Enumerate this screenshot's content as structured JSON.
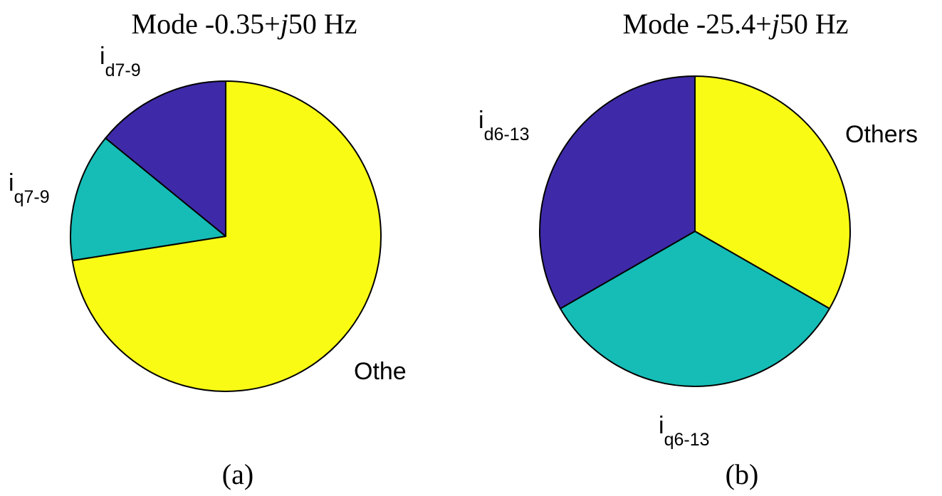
{
  "chart_data": [
    {
      "type": "pie",
      "title": {
        "prefix": "Mode -0.35+",
        "italic": "j",
        "suffix": "50 Hz"
      },
      "caption": "(a)",
      "slices": [
        {
          "label": "Othe",
          "main": "Othe",
          "sub": "",
          "value": 72.5,
          "color": "#F9FB15"
        },
        {
          "label": "iq7-9",
          "main": "i",
          "sub": "q7-9",
          "value": 13.4,
          "color": "#15BDB6"
        },
        {
          "label": "id7-9",
          "main": "i",
          "sub": "d7-9",
          "value": 14.1,
          "color": "#3E2AA8"
        }
      ]
    },
    {
      "type": "pie",
      "title": {
        "prefix": "Mode -25.4+",
        "italic": "j",
        "suffix": "50 Hz"
      },
      "caption": "(b)",
      "slices": [
        {
          "label": "Others",
          "main": "Others",
          "sub": "",
          "value": 33.3,
          "color": "#F9FB15"
        },
        {
          "label": "iq6-13",
          "main": "i",
          "sub": "q6-13",
          "value": 33.4,
          "color": "#15BDB6"
        },
        {
          "label": "id6-13",
          "main": "i",
          "sub": "d6-13",
          "value": 33.3,
          "color": "#3E2AA8"
        }
      ]
    }
  ]
}
